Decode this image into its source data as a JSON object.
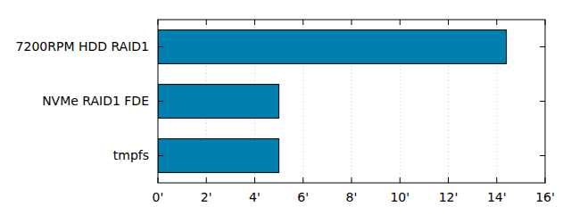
{
  "chart_data": {
    "type": "bar",
    "orientation": "horizontal",
    "categories": [
      "7200RPM HDD RAID1",
      "NVMe RAID1 FDE",
      "tmpfs"
    ],
    "values": [
      14.4,
      5,
      5
    ],
    "color": "#007fb1",
    "xlim": [
      0,
      16
    ],
    "xticks": [
      {
        "value": 0,
        "label": "0'"
      },
      {
        "value": 2,
        "label": "2'"
      },
      {
        "value": 4,
        "label": "4'"
      },
      {
        "value": 6,
        "label": "6'"
      },
      {
        "value": 8,
        "label": "8'"
      },
      {
        "value": 10,
        "label": "10'"
      },
      {
        "value": 12,
        "label": "12'"
      },
      {
        "value": 14,
        "label": "14'"
      },
      {
        "value": 16,
        "label": "16'"
      }
    ],
    "grid": true
  }
}
